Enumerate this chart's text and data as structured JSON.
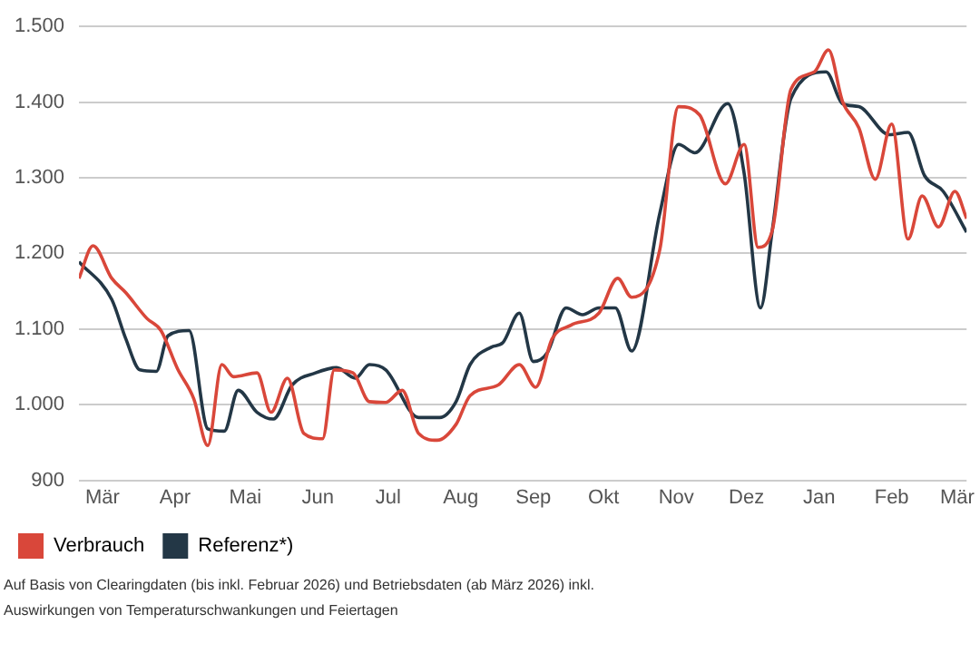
{
  "chart_data": {
    "type": "line",
    "x": [
      "2025-02-19",
      "2025-02-25",
      "2025-03-05",
      "2025-03-11",
      "2025-03-20",
      "2025-03-26",
      "2025-04-02",
      "2025-04-09",
      "2025-04-15",
      "2025-04-21",
      "2025-04-26",
      "2025-05-06",
      "2025-05-12",
      "2025-05-19",
      "2025-05-26",
      "2025-06-03",
      "2025-06-08",
      "2025-06-16",
      "2025-06-23",
      "2025-06-30",
      "2025-07-07",
      "2025-07-14",
      "2025-07-22",
      "2025-07-30",
      "2025-08-05",
      "2025-08-17",
      "2025-08-26",
      "2025-09-02",
      "2025-09-09",
      "2025-09-17",
      "2025-09-29",
      "2025-10-07",
      "2025-10-13",
      "2025-10-25",
      "2025-11-02",
      "2025-11-11",
      "2025-11-22",
      "2025-11-30",
      "2025-12-06",
      "2025-12-12",
      "2025-12-20",
      "2025-12-30",
      "2026-01-05",
      "2026-01-11",
      "2026-01-18",
      "2026-01-25",
      "2026-02-01",
      "2026-02-08",
      "2026-02-14",
      "2026-02-21",
      "2026-02-28",
      "2026-03-05"
    ],
    "series": [
      {
        "name": "Verbrauch",
        "color": "#d9473a",
        "values": [
          1167,
          1210,
          1167,
          1148,
          1114,
          1098,
          1048,
          1008,
          946,
          1053,
          1037,
          1042,
          990,
          1035,
          962,
          955,
          1046,
          1042,
          1004,
          1003,
          1019,
          962,
          953,
          974,
          1012,
          1026,
          1053,
          1023,
          1087,
          1105,
          1121,
          1167,
          1142,
          1205,
          1394,
          1383,
          1292,
          1344,
          1208,
          1230,
          1417,
          1440,
          1469,
          1401,
          1366,
          1298,
          1371,
          1219,
          1276,
          1235,
          1282,
          1246
        ]
      },
      {
        "name": "Referenz*)",
        "color": "#233746",
        "x": [
          "2025-02-19",
          "2025-03-05",
          "2025-03-11",
          "2025-03-17",
          "2025-03-24",
          "2025-03-29",
          "2025-04-07",
          "2025-04-15",
          "2025-04-22",
          "2025-04-28",
          "2025-05-06",
          "2025-05-13",
          "2025-05-21",
          "2025-05-31",
          "2025-06-09",
          "2025-06-17",
          "2025-06-23",
          "2025-06-30",
          "2025-07-14",
          "2025-07-23",
          "2025-07-30",
          "2025-08-05",
          "2025-08-14",
          "2025-08-19",
          "2025-08-26",
          "2025-09-01",
          "2025-09-07",
          "2025-09-15",
          "2025-09-22",
          "2025-09-29",
          "2025-10-06",
          "2025-10-13",
          "2025-10-25",
          "2025-11-02",
          "2025-11-09",
          "2025-11-23",
          "2025-11-30",
          "2025-12-07",
          "2025-12-12",
          "2025-12-20",
          "2026-01-04",
          "2026-01-11",
          "2026-01-18",
          "2026-01-31",
          "2026-02-08",
          "2026-02-15",
          "2026-02-23",
          "2026-03-05"
        ],
        "values": [
          1189,
          1139,
          1087,
          1046,
          1044,
          1091,
          1098,
          968,
          965,
          1019,
          990,
          981,
          1026,
          1042,
          1049,
          1035,
          1053,
          1046,
          983,
          983,
          1004,
          1053,
          1076,
          1082,
          1121,
          1057,
          1069,
          1128,
          1119,
          1128,
          1128,
          1071,
          1253,
          1344,
          1333,
          1398,
          1306,
          1128,
          1230,
          1405,
          1440,
          1398,
          1394,
          1357,
          1360,
          1303,
          1282,
          1228
        ]
      }
    ],
    "xlim": [
      "2025-02-19",
      "2026-03-05"
    ],
    "xticks": [
      {
        "value": "2025-03-01",
        "label": "Mär"
      },
      {
        "value": "2025-04-01",
        "label": "Apr"
      },
      {
        "value": "2025-05-01",
        "label": "Mai"
      },
      {
        "value": "2025-06-01",
        "label": "Jun"
      },
      {
        "value": "2025-07-01",
        "label": "Jul"
      },
      {
        "value": "2025-08-01",
        "label": "Aug"
      },
      {
        "value": "2025-09-01",
        "label": "Sep"
      },
      {
        "value": "2025-10-01",
        "label": "Okt"
      },
      {
        "value": "2025-11-01",
        "label": "Nov"
      },
      {
        "value": "2025-12-01",
        "label": "Dez"
      },
      {
        "value": "2026-01-01",
        "label": "Jan"
      },
      {
        "value": "2026-02-01",
        "label": "Feb"
      },
      {
        "value": "2026-03-01",
        "label": "Mär"
      }
    ],
    "ylim": [
      900,
      1500
    ],
    "yticks": [
      {
        "value": 900,
        "label": "900"
      },
      {
        "value": 1000,
        "label": "1.000"
      },
      {
        "value": 1100,
        "label": "1.100"
      },
      {
        "value": 1200,
        "label": "1.200"
      },
      {
        "value": 1300,
        "label": "1.300"
      },
      {
        "value": 1400,
        "label": "1.400"
      },
      {
        "value": 1500,
        "label": "1.500"
      }
    ],
    "grid": "y",
    "legend": "bottom left",
    "marker": "none",
    "line_style": "solid",
    "annotations": [
      "Auf Basis von Clearingdaten (bis inkl. Februar 2026) und Betriebsdaten (ab März 2026) inkl.",
      "Auswirkungen von Temperaturschwankungen und Feiertagen"
    ]
  }
}
